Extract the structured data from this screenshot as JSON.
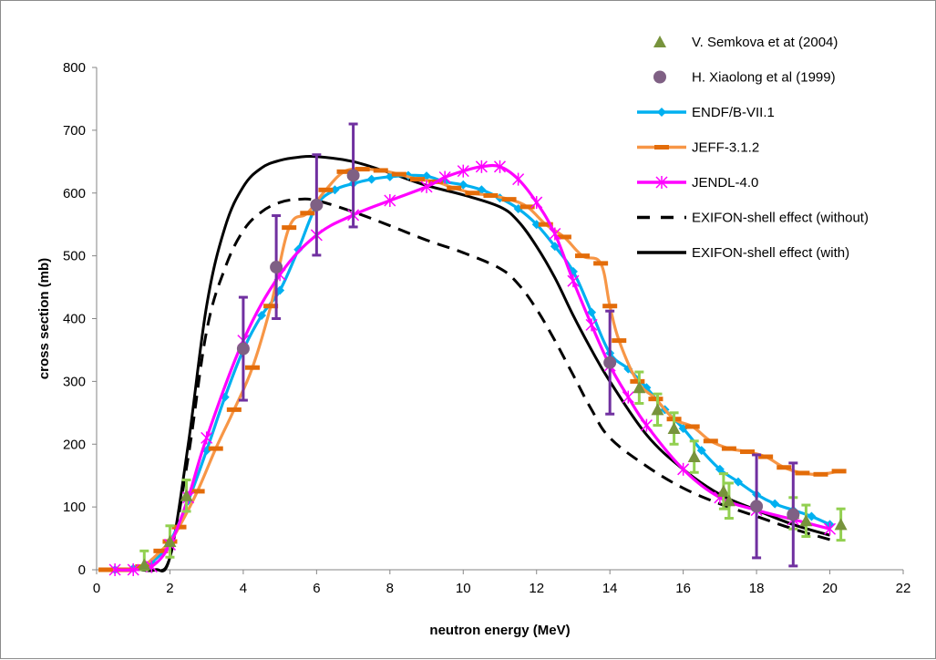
{
  "chart_data": {
    "type": "line",
    "title": "",
    "xlabel": "neutron energy (MeV)",
    "ylabel": "cross section (mb)",
    "xlim": [
      0,
      22
    ],
    "ylim": [
      0,
      800
    ],
    "xticks": [
      0,
      2,
      4,
      6,
      8,
      10,
      12,
      14,
      16,
      18,
      20,
      22
    ],
    "yticks": [
      0,
      100,
      200,
      300,
      400,
      500,
      600,
      700,
      800
    ],
    "grid": false,
    "legend_position": "top-right",
    "series": [
      {
        "name": "V. Semkova et at (2004)",
        "kind": "scatter",
        "marker": "triangle",
        "color": "#77933C",
        "errcolor": "#92D050",
        "points": [
          {
            "x": 1.3,
            "y": 8,
            "err": 22
          },
          {
            "x": 2.0,
            "y": 45,
            "err": 25
          },
          {
            "x": 2.45,
            "y": 118,
            "err": 25
          },
          {
            "x": 14.8,
            "y": 290,
            "err": 25
          },
          {
            "x": 15.3,
            "y": 255,
            "err": 25
          },
          {
            "x": 15.75,
            "y": 225,
            "err": 25
          },
          {
            "x": 16.3,
            "y": 180,
            "err": 25
          },
          {
            "x": 17.1,
            "y": 125,
            "err": 28
          },
          {
            "x": 17.25,
            "y": 110,
            "err": 28
          },
          {
            "x": 19.0,
            "y": 90,
            "err": 25
          },
          {
            "x": 19.35,
            "y": 78,
            "err": 25
          },
          {
            "x": 20.3,
            "y": 72,
            "err": 25
          }
        ]
      },
      {
        "name": "H. Xiaolong et al (1999)",
        "kind": "scatter",
        "marker": "circle",
        "color": "#7F6084",
        "errcolor": "#7030A0",
        "points": [
          {
            "x": 4.0,
            "y": 352,
            "err": 82
          },
          {
            "x": 4.9,
            "y": 482,
            "err": 82
          },
          {
            "x": 6.0,
            "y": 581,
            "err": 80
          },
          {
            "x": 7.0,
            "y": 628,
            "err": 82
          },
          {
            "x": 14.0,
            "y": 330,
            "err": 82
          },
          {
            "x": 18.0,
            "y": 101,
            "err": 82
          },
          {
            "x": 19.0,
            "y": 88,
            "err": 82
          }
        ]
      },
      {
        "name": "ENDF/B-VII.1",
        "kind": "line",
        "marker": "diamond",
        "color": "#00B0F0",
        "x": [
          0.5,
          1.0,
          1.5,
          2.0,
          2.5,
          3.0,
          3.5,
          4.0,
          4.5,
          5.0,
          5.5,
          6.0,
          6.5,
          7.0,
          7.5,
          8.0,
          8.5,
          9.0,
          9.5,
          10.0,
          10.5,
          11.0,
          11.5,
          12.0,
          12.5,
          13.0,
          13.5,
          14.0,
          14.5,
          15.0,
          15.5,
          16.0,
          16.5,
          17.0,
          17.5,
          18.0,
          18.5,
          19.0,
          19.5,
          20.0
        ],
        "y": [
          0,
          2,
          12,
          45,
          110,
          190,
          275,
          350,
          405,
          445,
          510,
          580,
          605,
          615,
          622,
          626,
          628,
          627,
          618,
          613,
          605,
          592,
          575,
          550,
          515,
          475,
          410,
          345,
          320,
          290,
          255,
          225,
          190,
          160,
          140,
          120,
          105,
          95,
          85,
          72
        ]
      },
      {
        "name": "JEFF-3.1.2",
        "kind": "line",
        "marker": "dash",
        "color": "#F79646",
        "markercolor": "#E36C09",
        "x": [
          0.25,
          0.75,
          1.25,
          1.75,
          2.0,
          2.25,
          2.75,
          3.25,
          3.75,
          4.25,
          4.75,
          5.25,
          5.75,
          6.25,
          6.75,
          7.25,
          7.75,
          8.25,
          8.75,
          9.25,
          9.75,
          10.25,
          10.75,
          11.25,
          11.75,
          12.25,
          12.75,
          13.25,
          13.75,
          14.0,
          14.25,
          14.75,
          15.25,
          15.75,
          16.25,
          16.75,
          17.25,
          17.75,
          18.25,
          18.75,
          19.25,
          19.75,
          20.25
        ],
        "y": [
          0,
          0,
          5,
          30,
          45,
          68,
          125,
          193,
          255,
          322,
          420,
          545,
          568,
          605,
          634,
          638,
          636,
          630,
          622,
          618,
          608,
          600,
          596,
          590,
          578,
          550,
          530,
          500,
          488,
          420,
          365,
          300,
          272,
          240,
          228,
          205,
          193,
          188,
          180,
          163,
          154,
          152,
          157
        ]
      },
      {
        "name": "JENDL-4.0",
        "kind": "line",
        "marker": "star",
        "color": "#FF00FF",
        "x": [
          0.5,
          1.0,
          1.5,
          2.0,
          2.5,
          3.0,
          4.0,
          5.0,
          6.0,
          7.0,
          8.0,
          9.0,
          9.5,
          10.0,
          10.5,
          11.0,
          11.5,
          12.0,
          12.5,
          13.0,
          13.5,
          14.0,
          14.5,
          15.0,
          16.0,
          17.0,
          18.0,
          19.0,
          20.0
        ],
        "y": [
          0,
          0,
          5,
          40,
          115,
          210,
          365,
          470,
          533,
          565,
          588,
          610,
          625,
          635,
          642,
          642,
          622,
          585,
          535,
          460,
          390,
          325,
          275,
          230,
          160,
          115,
          95,
          80,
          65
        ]
      },
      {
        "name": "EXIFON-shell effect (without)",
        "kind": "line",
        "marker": "none",
        "dash": true,
        "color": "#000000",
        "x": [
          1.2,
          1.6,
          2.0,
          2.5,
          3.0,
          3.5,
          4.0,
          4.5,
          5.0,
          5.5,
          6.0,
          7.0,
          8.0,
          9.0,
          10.0,
          11.0,
          11.5,
          12.0,
          12.5,
          13.0,
          13.5,
          14.0,
          15.0,
          16.0,
          17.0,
          18.0,
          19.0,
          20.0
        ],
        "y": [
          0,
          0,
          20,
          180,
          380,
          480,
          540,
          570,
          585,
          590,
          588,
          570,
          548,
          525,
          505,
          480,
          455,
          415,
          365,
          310,
          255,
          210,
          165,
          130,
          105,
          85,
          65,
          48
        ]
      },
      {
        "name": "EXIFON-shell effect (with)",
        "kind": "line",
        "marker": "none",
        "dash": false,
        "color": "#000000",
        "x": [
          1.2,
          1.6,
          2.0,
          2.5,
          3.0,
          3.5,
          4.0,
          4.5,
          5.0,
          5.5,
          6.0,
          7.0,
          8.0,
          9.0,
          10.0,
          11.0,
          11.5,
          12.0,
          12.5,
          13.0,
          13.5,
          14.0,
          15.0,
          16.0,
          17.0,
          18.0,
          19.0,
          20.0
        ],
        "y": [
          0,
          0,
          20,
          200,
          420,
          545,
          610,
          640,
          652,
          657,
          658,
          650,
          632,
          612,
          597,
          578,
          555,
          515,
          465,
          405,
          350,
          300,
          215,
          160,
          120,
          95,
          72,
          55
        ]
      }
    ]
  }
}
